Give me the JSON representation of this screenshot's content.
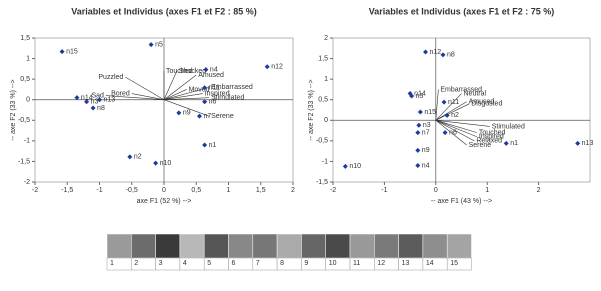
{
  "chart_data": [
    {
      "type": "biplot",
      "title": "Variables et Individus (axes F1 et F2 : 85 %)",
      "x_label": "axe F1 (52 %) -->",
      "y_label": "-- axe F2 (33 %) -->",
      "xlim": [
        -2,
        2
      ],
      "ylim": [
        -2,
        1.5
      ],
      "xticks": [
        -2,
        {
          "value": -1.5,
          "label": "-1,5"
        },
        -1,
        {
          "value": -0.5,
          "label": "-0,5"
        },
        0,
        {
          "value": 0.5,
          "label": "0,5"
        },
        1,
        {
          "value": 1.5,
          "label": "1,5"
        },
        2
      ],
      "yticks": [
        {
          "value": 1.5,
          "label": "1,5"
        },
        1,
        {
          "value": 0.5,
          "label": "0,5"
        },
        0,
        {
          "value": -0.5,
          "label": "-0,5"
        },
        -1,
        {
          "value": -1.5,
          "label": "-1,5"
        },
        -2
      ],
      "color": "#1f3a9a",
      "point_labels": [
        "n1",
        "n2",
        "n3",
        "n4",
        "n5",
        "n6",
        "n7",
        "n8",
        "n9",
        "n10",
        "n11",
        "n12",
        "n13",
        "n14",
        "n15"
      ],
      "x": [
        0.63,
        -0.53,
        -1.2,
        0.65,
        -0.2,
        0.63,
        0.55,
        -1.1,
        0.23,
        -0.13,
        0.63,
        1.6,
        -1.0,
        -1.35,
        -1.58
      ],
      "values": [
        -1.1,
        -1.39,
        -0.05,
        0.73,
        1.34,
        -0.05,
        -0.4,
        -0.2,
        -0.32,
        -1.54,
        0.29,
        0.8,
        0.0,
        0.05,
        1.17
      ],
      "vectors": {
        "labels": [
          "Touched",
          "Shocked",
          "Amused",
          "Puzzled",
          "Embarrassed",
          "Inspired",
          "Stimulated",
          "Serene",
          "Sad",
          "Moved",
          "Bored"
        ],
        "x": [
          0.0,
          0.2,
          0.5,
          -0.6,
          0.7,
          0.6,
          0.7,
          0.7,
          -0.9,
          0.35,
          -0.5
        ],
        "y": [
          0.7,
          0.7,
          0.6,
          0.55,
          0.3,
          0.15,
          0.05,
          -0.4,
          0.1,
          0.25,
          0.15
        ]
      }
    },
    {
      "type": "biplot",
      "title": "Variables et Individus (axes F1 et F2 : 75 %)",
      "x_label": "-- axe F1 (43 %) -->",
      "y_label": "-- axe F2 (33 %) -->",
      "xlim": [
        -2,
        3
      ],
      "ylim": [
        -1.5,
        2
      ],
      "xticks": [
        -2,
        -1,
        0,
        1,
        2
      ],
      "yticks": [
        2,
        {
          "value": 1.5,
          "label": "1,5"
        },
        1,
        {
          "value": 0.5,
          "label": "0,5"
        },
        0,
        {
          "value": -0.5,
          "label": "-0,5"
        },
        -1,
        {
          "value": -1.5,
          "label": "-1,5"
        }
      ],
      "color": "#1f3a9a",
      "point_labels": [
        "n1",
        "n2",
        "n3",
        "n4",
        "n5",
        "n6",
        "n7",
        "n8",
        "n9",
        "n10",
        "n11",
        "n12",
        "n13",
        "n14",
        "n15"
      ],
      "x": [
        1.37,
        0.22,
        -0.33,
        -0.35,
        -0.47,
        0.18,
        -0.35,
        0.14,
        -0.35,
        -1.76,
        0.16,
        -0.2,
        2.76,
        -0.5,
        -0.3
      ],
      "values": [
        -0.56,
        0.12,
        -0.12,
        -1.1,
        0.59,
        -0.3,
        -0.3,
        1.59,
        -0.73,
        -1.12,
        0.44,
        1.66,
        -0.56,
        0.65,
        0.2
      ],
      "vectors": {
        "labels": [
          "Embarrassed",
          "Neutral",
          "Amused",
          "Disgusted",
          "Stimulated",
          "Touched",
          "Inspired",
          "Relaxed",
          "Serene"
        ],
        "x": [
          0.05,
          0.5,
          0.6,
          0.65,
          1.05,
          0.8,
          0.8,
          0.75,
          0.6
        ],
        "y": [
          0.75,
          0.65,
          0.45,
          0.4,
          -0.15,
          -0.3,
          -0.4,
          -0.5,
          -0.6
        ]
      }
    }
  ],
  "thumbnails": {
    "labels": [
      "1",
      "2",
      "3",
      "4",
      "5",
      "6",
      "7",
      "8",
      "9",
      "10",
      "11",
      "12",
      "13",
      "14",
      "15"
    ]
  }
}
